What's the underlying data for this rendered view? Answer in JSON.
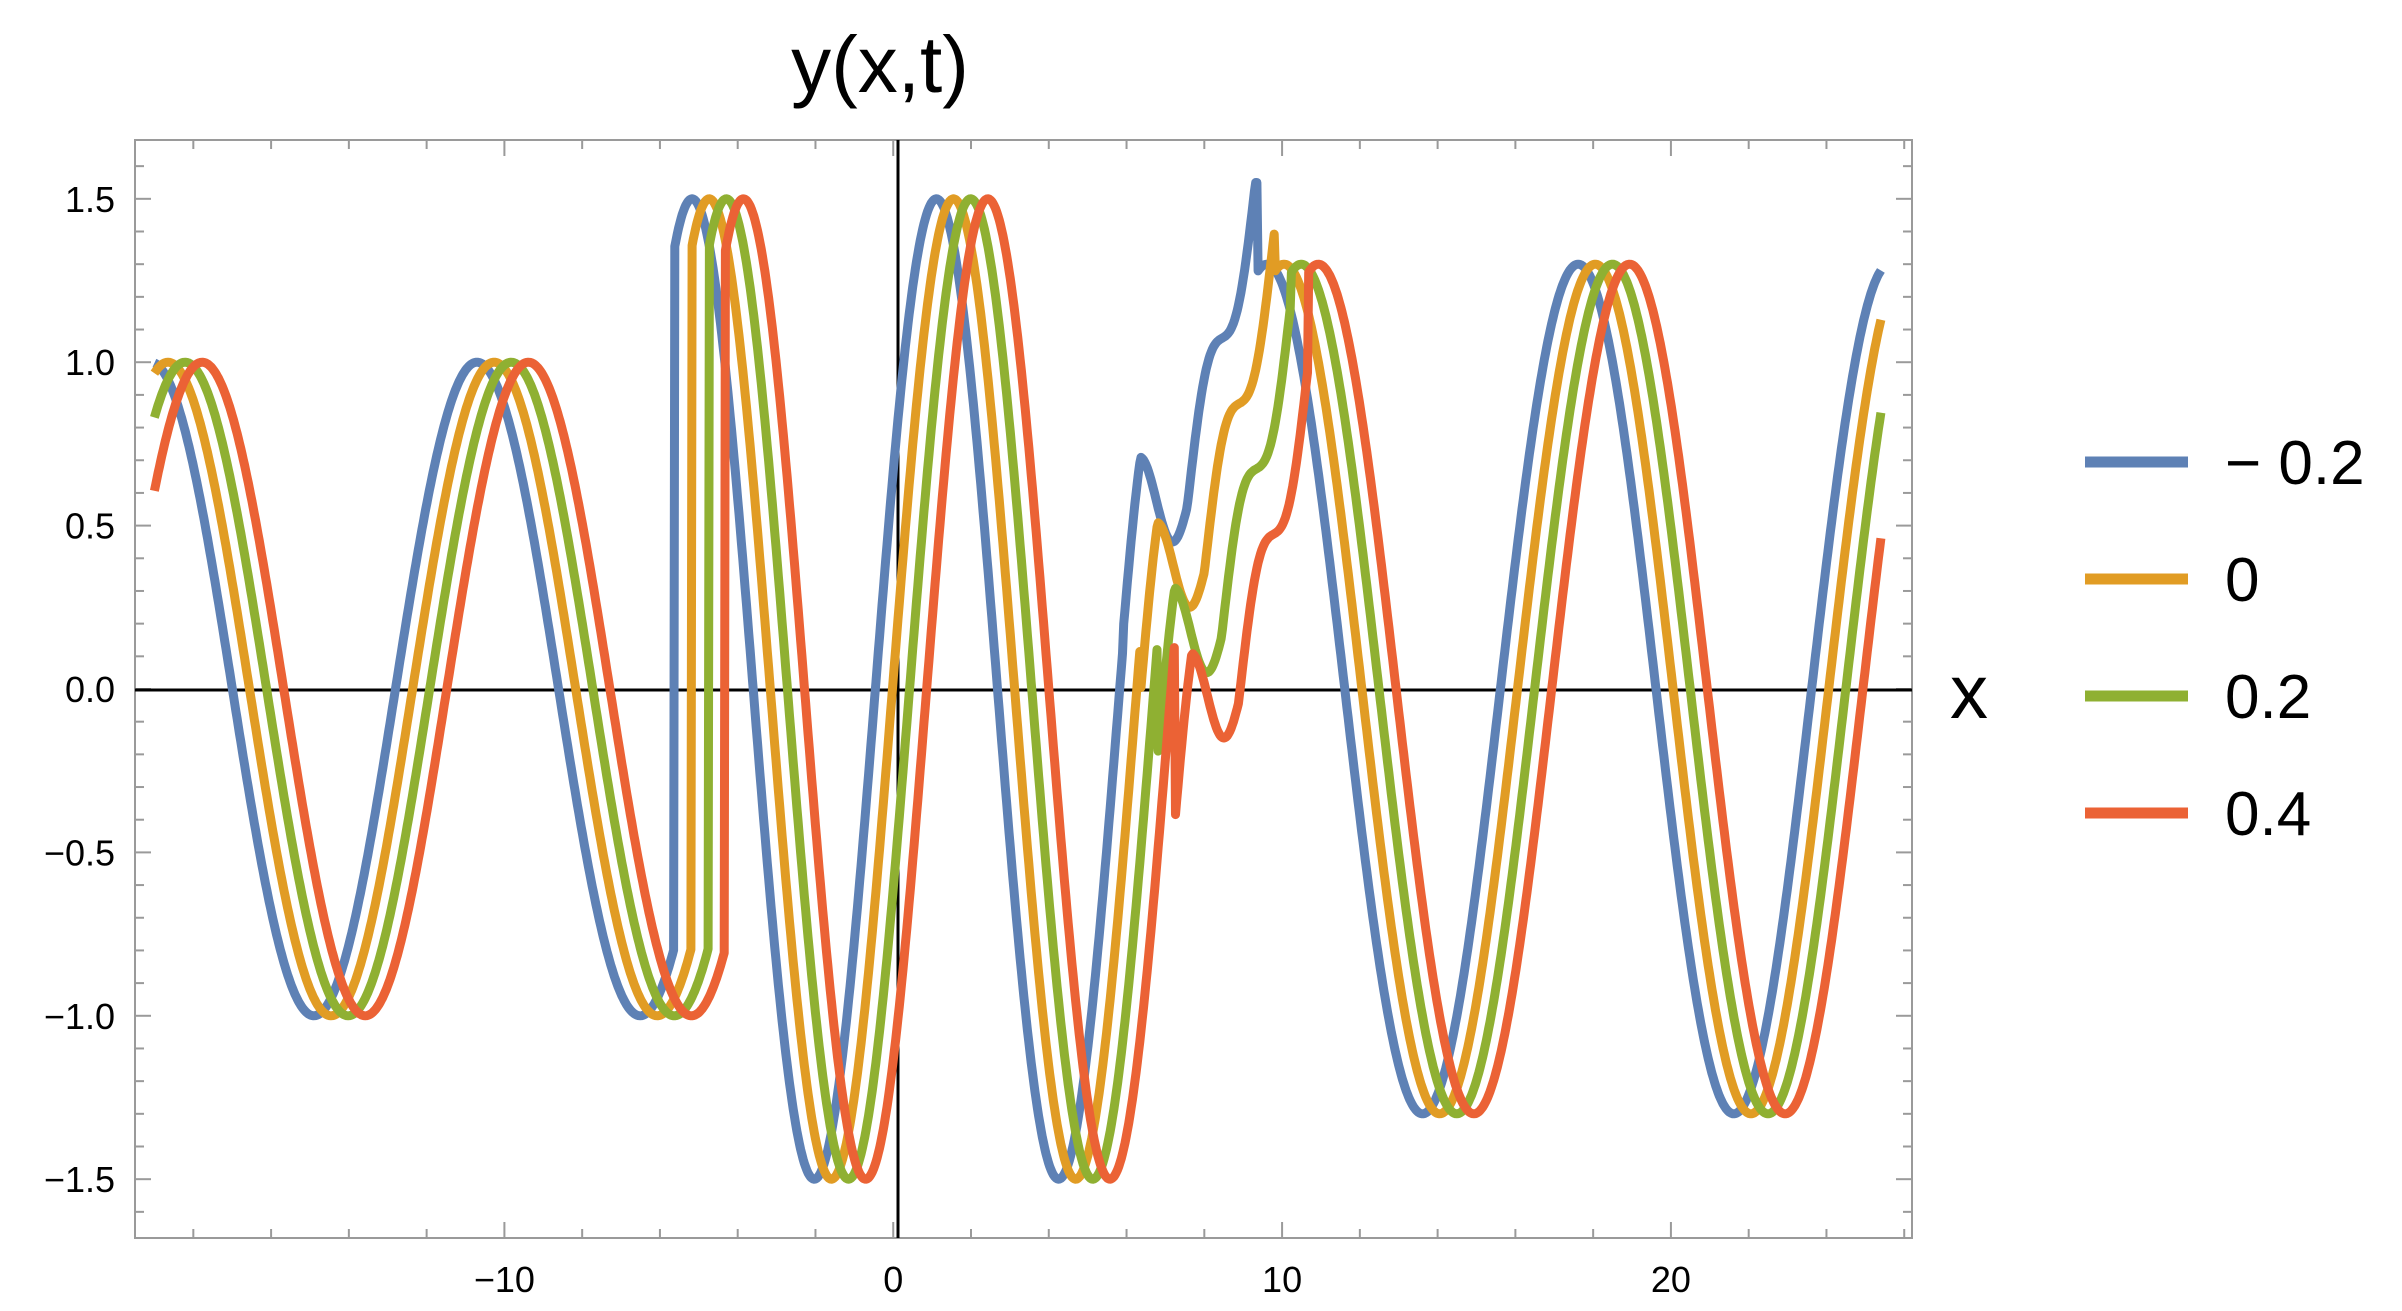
{
  "chart_data": {
    "type": "line",
    "title": "y(x,t)",
    "xlabel": "x",
    "ylabel": "",
    "xlim": [
      -19.5,
      26.2
    ],
    "ylim": [
      -1.68,
      1.68
    ],
    "grid": false,
    "legend_position": "right",
    "x_ticks": [
      -10,
      0,
      10,
      20
    ],
    "x_tick_labels": [
      "−10",
      "0",
      "10",
      "20"
    ],
    "y_ticks": [
      -1.5,
      -1.0,
      -0.5,
      0.0,
      0.5,
      1.0,
      1.5
    ],
    "y_tick_labels": [
      "−1.5",
      "−1.0",
      "−0.5",
      "0.0",
      "0.5",
      "1.0",
      "1.5"
    ],
    "x_range": [
      -19,
      25.4
    ],
    "series": [
      {
        "name": "− 0.2",
        "t": -0.2,
        "color": "#5E81B5"
      },
      {
        "name": "0",
        "t": 0,
        "color": "#E19C24"
      },
      {
        "name": "0.2",
        "t": 0.2,
        "color": "#8FB032"
      },
      {
        "name": "0.4",
        "t": 0.4,
        "color": "#EB6235"
      }
    ]
  }
}
